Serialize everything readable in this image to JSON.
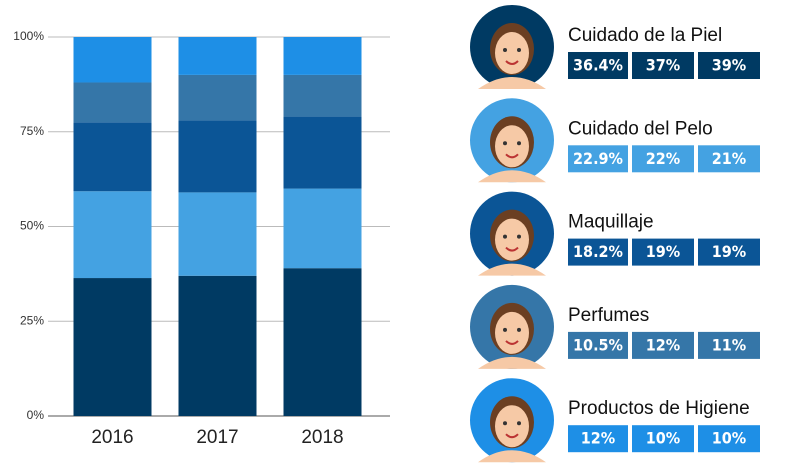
{
  "chart_data": {
    "type": "bar",
    "stacked": true,
    "categories": [
      "2016",
      "2017",
      "2018"
    ],
    "series": [
      {
        "name": "Cuidado de la Piel",
        "color": "#003a63",
        "values": [
          36.4,
          37,
          39
        ],
        "value_labels": [
          "36.4%",
          "37%",
          "39%"
        ]
      },
      {
        "name": "Cuidado del Pelo",
        "color": "#44a2e2",
        "values": [
          22.9,
          22,
          21
        ],
        "value_labels": [
          "22.9%",
          "22%",
          "21%"
        ]
      },
      {
        "name": "Maquillaje",
        "color": "#0b5596",
        "values": [
          18.2,
          19,
          19
        ],
        "value_labels": [
          "18.2%",
          "19%",
          "19%"
        ]
      },
      {
        "name": "Perfumes",
        "color": "#3576a8",
        "values": [
          10.5,
          12,
          11
        ],
        "value_labels": [
          "10.5%",
          "12%",
          "11%"
        ]
      },
      {
        "name": "Productos de Higiene",
        "color": "#1e8fe6",
        "values": [
          12,
          10,
          10
        ],
        "value_labels": [
          "12%",
          "10%",
          "10%"
        ]
      }
    ],
    "ylim": [
      0,
      100
    ],
    "yticks": [
      {
        "value": 0,
        "label": "0%"
      },
      {
        "value": 25,
        "label": "25%"
      },
      {
        "value": 50,
        "label": "50%"
      },
      {
        "value": 75,
        "label": "75%"
      },
      {
        "value": 100,
        "label": "100%"
      }
    ],
    "grid": true
  }
}
